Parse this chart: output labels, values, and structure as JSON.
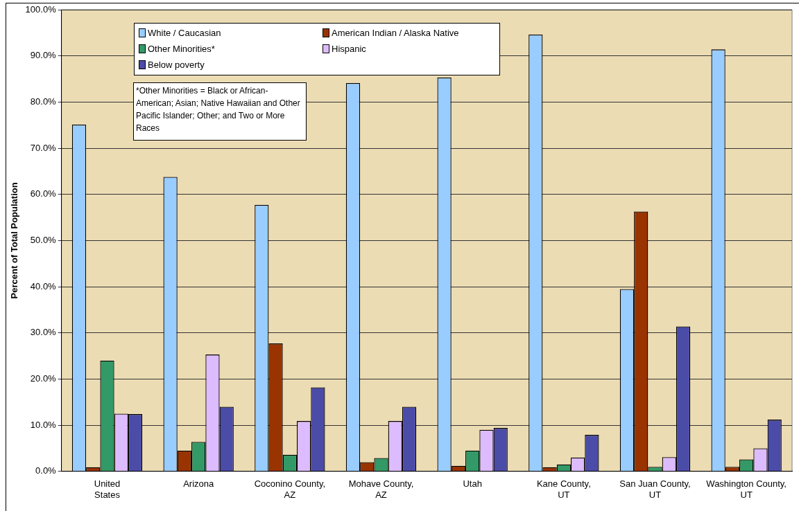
{
  "chart_data": {
    "type": "bar",
    "ylabel": "Percent of Total Population",
    "categories": [
      "United States",
      "Arizona",
      "Coconino County, AZ",
      "Mohave County, AZ",
      "Utah",
      "Kane County, UT",
      "San Juan County, UT",
      "Washington County, UT"
    ],
    "series": [
      {
        "name": "White / Caucasian",
        "color": "#99ccff",
        "values": [
          75.1,
          63.8,
          57.7,
          84.1,
          85.3,
          94.6,
          39.5,
          91.4
        ]
      },
      {
        "name": "American Indian / Alaska Native",
        "color": "#993300",
        "values": [
          0.9,
          4.5,
          27.7,
          2.0,
          1.2,
          0.9,
          56.3,
          1.0
        ]
      },
      {
        "name": "Other Minorities*",
        "color": "#339966",
        "values": [
          24.0,
          6.4,
          3.6,
          2.9,
          4.5,
          1.5,
          1.0,
          2.6
        ]
      },
      {
        "name": "Hispanic",
        "color": "#ddbbff",
        "values": [
          12.5,
          25.3,
          10.9,
          10.9,
          9.0,
          3.0,
          3.1,
          5.0
        ]
      },
      {
        "name": "Below poverty",
        "color": "#4b4ba8",
        "values": [
          12.4,
          14.0,
          18.2,
          14.0,
          9.4,
          7.9,
          31.4,
          11.2
        ]
      }
    ],
    "ylim": [
      0,
      100
    ],
    "yticks": [
      {
        "value": 0,
        "label": "0.0%"
      },
      {
        "value": 10,
        "label": "10.0%"
      },
      {
        "value": 20,
        "label": "20.0%"
      },
      {
        "value": 30,
        "label": "30.0%"
      },
      {
        "value": 40,
        "label": "40.0%"
      },
      {
        "value": 50,
        "label": "50.0%"
      },
      {
        "value": 60,
        "label": "60.0%"
      },
      {
        "value": 70,
        "label": "70.0%"
      },
      {
        "value": 80,
        "label": "80.0%"
      },
      {
        "value": 90,
        "label": "90.0%"
      },
      {
        "value": 100,
        "label": "100.0%"
      }
    ],
    "grid": "y",
    "legend": "top left",
    "annotations": [
      "*Other Minorities = Black or African-American; Asian; Native Hawaiian and Other Pacific Islander; Other; and Two or More Races"
    ]
  }
}
